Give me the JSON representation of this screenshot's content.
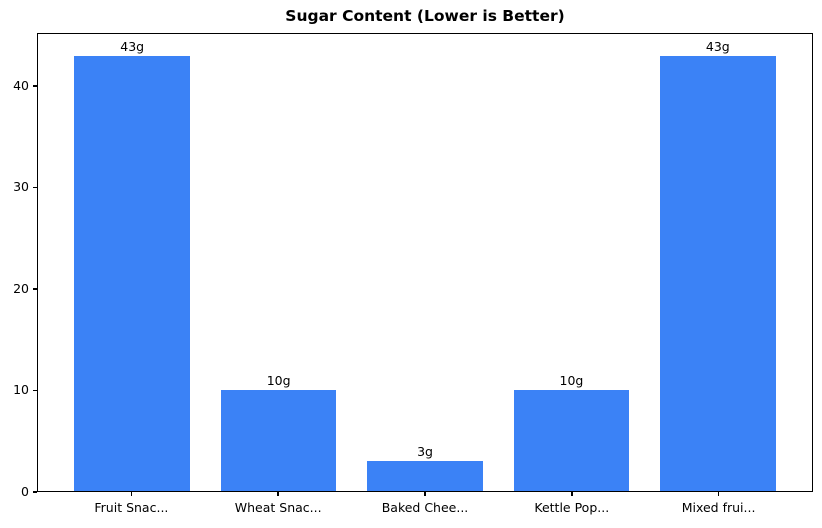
{
  "chart_data": {
    "type": "bar",
    "title": "Sugar Content (Lower is Better)",
    "categories": [
      "Fruit Snac...",
      "Wheat Snac...",
      "Baked Chee...",
      "Kettle Pop...",
      "Mixed frui..."
    ],
    "values": [
      43,
      10,
      3,
      10,
      43
    ],
    "bar_labels": [
      "43g",
      "10g",
      "3g",
      "10g",
      "43g"
    ],
    "yticks": [
      0,
      10,
      20,
      30,
      40
    ],
    "ylim": [
      0,
      45.2
    ],
    "xlabel": "",
    "ylabel": "",
    "grid": false,
    "legend": null,
    "bar_color": "#3b82f6",
    "axis_color": "#000000",
    "background_color": "#ffffff"
  }
}
